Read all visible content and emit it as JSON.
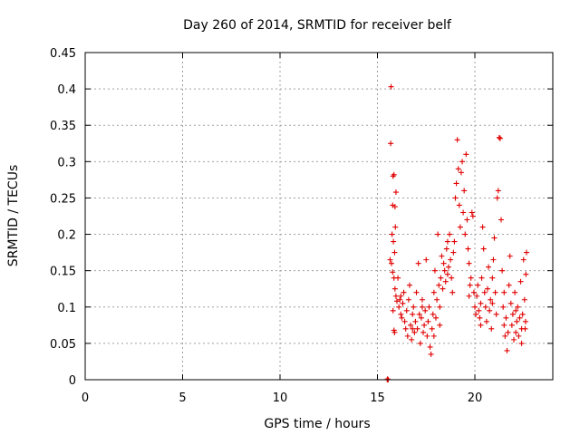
{
  "chart_data": {
    "type": "scatter",
    "title": "Day 260 of 2014, SRMTID for receiver belf",
    "xlabel": "GPS time / hours",
    "ylabel": "SRMTID / TECUs",
    "xlim": [
      0,
      24
    ],
    "ylim": [
      0,
      0.45
    ],
    "x_ticks": [
      0,
      5,
      10,
      15,
      20
    ],
    "x_tick_labels": [
      "0",
      "5",
      "10",
      "15",
      "20"
    ],
    "y_ticks": [
      0,
      0.05,
      0.1,
      0.15,
      0.2,
      0.25,
      0.3,
      0.35,
      0.4,
      0.45
    ],
    "y_tick_labels": [
      "0",
      "0.05",
      "0.1",
      "0.15",
      "0.2",
      "0.25",
      "0.3",
      "0.35",
      "0.4",
      "0.45"
    ],
    "grid": true,
    "marker": "+",
    "color": "#e00000",
    "series": [
      {
        "name": "SRMTID",
        "points": [
          [
            15.5,
            0.0
          ],
          [
            15.52,
            0.001
          ],
          [
            15.55,
            0.0
          ],
          [
            15.7,
            0.403
          ],
          [
            15.68,
            0.325
          ],
          [
            15.8,
            0.28
          ],
          [
            15.85,
            0.282
          ],
          [
            15.78,
            0.24
          ],
          [
            15.9,
            0.238
          ],
          [
            15.95,
            0.258
          ],
          [
            15.75,
            0.2
          ],
          [
            15.82,
            0.19
          ],
          [
            15.92,
            0.21
          ],
          [
            15.88,
            0.175
          ],
          [
            15.65,
            0.165
          ],
          [
            15.72,
            0.16
          ],
          [
            15.78,
            0.148
          ],
          [
            15.85,
            0.14
          ],
          [
            15.9,
            0.125
          ],
          [
            15.95,
            0.115
          ],
          [
            16.0,
            0.108
          ],
          [
            15.8,
            0.095
          ],
          [
            15.85,
            0.068
          ],
          [
            15.88,
            0.065
          ],
          [
            16.05,
            0.14
          ],
          [
            16.1,
            0.1
          ],
          [
            16.15,
            0.11
          ],
          [
            16.2,
            0.09
          ],
          [
            16.25,
            0.085
          ],
          [
            16.3,
            0.105
          ],
          [
            16.35,
            0.12
          ],
          [
            16.4,
            0.08
          ],
          [
            16.45,
            0.07
          ],
          [
            16.5,
            0.095
          ],
          [
            16.55,
            0.06
          ],
          [
            16.6,
            0.11
          ],
          [
            16.65,
            0.13
          ],
          [
            16.7,
            0.075
          ],
          [
            16.75,
            0.055
          ],
          [
            16.8,
            0.09
          ],
          [
            16.85,
            0.1
          ],
          [
            16.9,
            0.065
          ],
          [
            16.95,
            0.08
          ],
          [
            17.0,
            0.12
          ],
          [
            17.05,
            0.07
          ],
          [
            17.1,
            0.16
          ],
          [
            17.15,
            0.09
          ],
          [
            17.2,
            0.05
          ],
          [
            17.25,
            0.085
          ],
          [
            17.3,
            0.11
          ],
          [
            17.35,
            0.065
          ],
          [
            17.4,
            0.075
          ],
          [
            17.45,
            0.095
          ],
          [
            17.5,
            0.165
          ],
          [
            17.55,
            0.06
          ],
          [
            17.6,
            0.08
          ],
          [
            17.65,
            0.1
          ],
          [
            17.7,
            0.045
          ],
          [
            17.75,
            0.035
          ],
          [
            17.8,
            0.07
          ],
          [
            17.85,
            0.09
          ],
          [
            17.9,
            0.12
          ],
          [
            17.95,
            0.15
          ],
          [
            18.0,
            0.085
          ],
          [
            18.05,
            0.11
          ],
          [
            18.1,
            0.2
          ],
          [
            18.15,
            0.13
          ],
          [
            18.2,
            0.1
          ],
          [
            18.25,
            0.14
          ],
          [
            18.3,
            0.17
          ],
          [
            18.35,
            0.125
          ],
          [
            18.4,
            0.16
          ],
          [
            18.45,
            0.15
          ],
          [
            18.5,
            0.135
          ],
          [
            18.55,
            0.18
          ],
          [
            18.6,
            0.19
          ],
          [
            18.65,
            0.155
          ],
          [
            18.7,
            0.2
          ],
          [
            18.75,
            0.165
          ],
          [
            18.8,
            0.14
          ],
          [
            18.85,
            0.12
          ],
          [
            18.9,
            0.175
          ],
          [
            18.95,
            0.19
          ],
          [
            19.0,
            0.25
          ],
          [
            19.05,
            0.27
          ],
          [
            19.1,
            0.33
          ],
          [
            19.15,
            0.29
          ],
          [
            19.2,
            0.24
          ],
          [
            19.25,
            0.21
          ],
          [
            19.3,
            0.285
          ],
          [
            19.35,
            0.3
          ],
          [
            19.4,
            0.23
          ],
          [
            19.45,
            0.26
          ],
          [
            19.5,
            0.2
          ],
          [
            19.55,
            0.31
          ],
          [
            19.6,
            0.22
          ],
          [
            19.65,
            0.18
          ],
          [
            19.7,
            0.16
          ],
          [
            19.75,
            0.13
          ],
          [
            19.8,
            0.14
          ],
          [
            19.85,
            0.23
          ],
          [
            19.9,
            0.225
          ],
          [
            19.95,
            0.12
          ],
          [
            20.0,
            0.1
          ],
          [
            20.05,
            0.09
          ],
          [
            20.1,
            0.115
          ],
          [
            20.15,
            0.13
          ],
          [
            20.2,
            0.095
          ],
          [
            20.25,
            0.085
          ],
          [
            20.3,
            0.105
          ],
          [
            20.35,
            0.14
          ],
          [
            20.4,
            0.21
          ],
          [
            20.45,
            0.18
          ],
          [
            20.5,
            0.12
          ],
          [
            20.55,
            0.1
          ],
          [
            20.6,
            0.08
          ],
          [
            20.65,
            0.125
          ],
          [
            20.7,
            0.155
          ],
          [
            20.75,
            0.095
          ],
          [
            20.8,
            0.11
          ],
          [
            20.85,
            0.07
          ],
          [
            20.9,
            0.14
          ],
          [
            20.95,
            0.165
          ],
          [
            21.0,
            0.195
          ],
          [
            21.05,
            0.12
          ],
          [
            21.1,
            0.09
          ],
          [
            21.15,
            0.25
          ],
          [
            21.2,
            0.26
          ],
          [
            21.25,
            0.333
          ],
          [
            21.3,
            0.332
          ],
          [
            21.35,
            0.22
          ],
          [
            21.4,
            0.15
          ],
          [
            21.45,
            0.1
          ],
          [
            21.5,
            0.075
          ],
          [
            21.55,
            0.06
          ],
          [
            21.6,
            0.085
          ],
          [
            21.65,
            0.04
          ],
          [
            21.7,
            0.065
          ],
          [
            21.75,
            0.13
          ],
          [
            21.8,
            0.17
          ],
          [
            21.85,
            0.105
          ],
          [
            21.9,
            0.075
          ],
          [
            21.95,
            0.09
          ],
          [
            22.0,
            0.055
          ],
          [
            22.05,
            0.12
          ],
          [
            22.1,
            0.065
          ],
          [
            22.15,
            0.08
          ],
          [
            22.2,
            0.1
          ],
          [
            22.25,
            0.06
          ],
          [
            22.3,
            0.085
          ],
          [
            22.35,
            0.135
          ],
          [
            22.4,
            0.07
          ],
          [
            22.45,
            0.09
          ],
          [
            22.5,
            0.165
          ],
          [
            22.55,
            0.11
          ],
          [
            22.58,
            0.07
          ],
          [
            22.6,
            0.08
          ],
          [
            22.62,
            0.145
          ],
          [
            22.65,
            0.175
          ],
          [
            16.2,
            0.115
          ],
          [
            16.8,
            0.07
          ],
          [
            17.3,
            0.1
          ],
          [
            17.9,
            0.06
          ],
          [
            18.6,
            0.145
          ],
          [
            19.7,
            0.115
          ],
          [
            20.3,
            0.075
          ],
          [
            20.9,
            0.105
          ],
          [
            21.5,
            0.12
          ],
          [
            22.1,
            0.095
          ],
          [
            22.4,
            0.05
          ],
          [
            18.2,
            0.075
          ]
        ]
      }
    ]
  }
}
